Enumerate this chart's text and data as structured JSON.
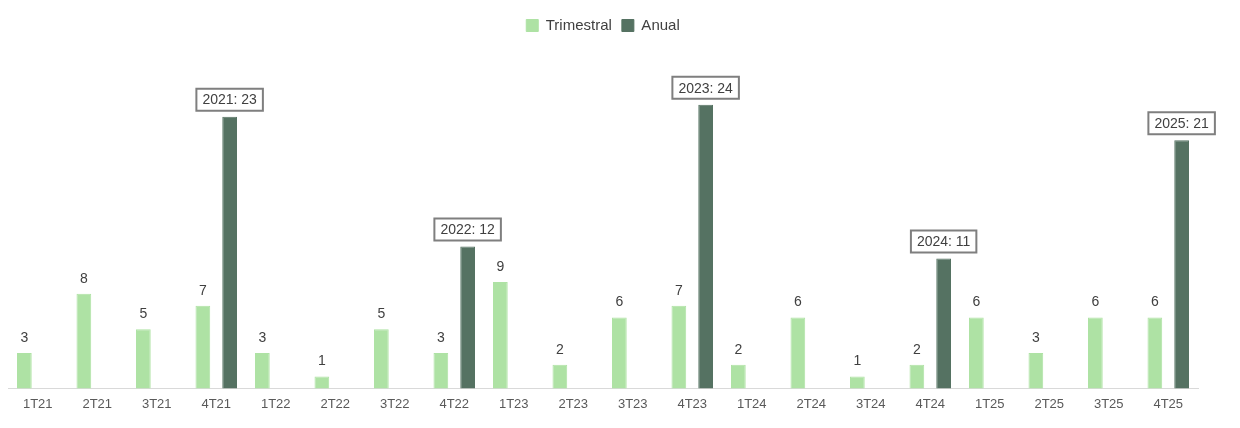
{
  "chart_data": {
    "type": "bar",
    "categories": [
      "1T21",
      "2T21",
      "3T21",
      "4T21",
      "1T22",
      "2T22",
      "3T22",
      "4T22",
      "1T23",
      "2T23",
      "3T23",
      "4T23",
      "1T24",
      "2T24",
      "3T24",
      "4T24",
      "1T25",
      "2T25",
      "3T25",
      "4T25"
    ],
    "series": [
      {
        "name": "Trimestral",
        "color": "#aee2a4",
        "values": [
          3,
          8,
          5,
          7,
          3,
          1,
          5,
          3,
          9,
          2,
          6,
          7,
          2,
          6,
          1,
          2,
          6,
          3,
          6,
          6
        ],
        "value_labels": [
          "3",
          "8",
          "5",
          "7",
          "3",
          "1",
          "5",
          "3",
          "9",
          "2",
          "6",
          "7",
          "2",
          "6",
          "1",
          "2",
          "6",
          "3",
          "6",
          "6"
        ]
      },
      {
        "name": "Anual",
        "color": "#557262",
        "values": [
          null,
          null,
          null,
          23,
          null,
          null,
          null,
          12,
          null,
          null,
          null,
          24,
          null,
          null,
          null,
          11,
          null,
          null,
          null,
          21
        ],
        "value_labels": [
          null,
          null,
          null,
          "2021: 23",
          null,
          null,
          null,
          "2022: 12",
          null,
          null,
          null,
          "2023: 24",
          null,
          null,
          null,
          "2024: 11",
          null,
          null,
          null,
          "2025: 21"
        ]
      }
    ],
    "legend": "top",
    "grid": false,
    "tick_labels": "x"
  }
}
